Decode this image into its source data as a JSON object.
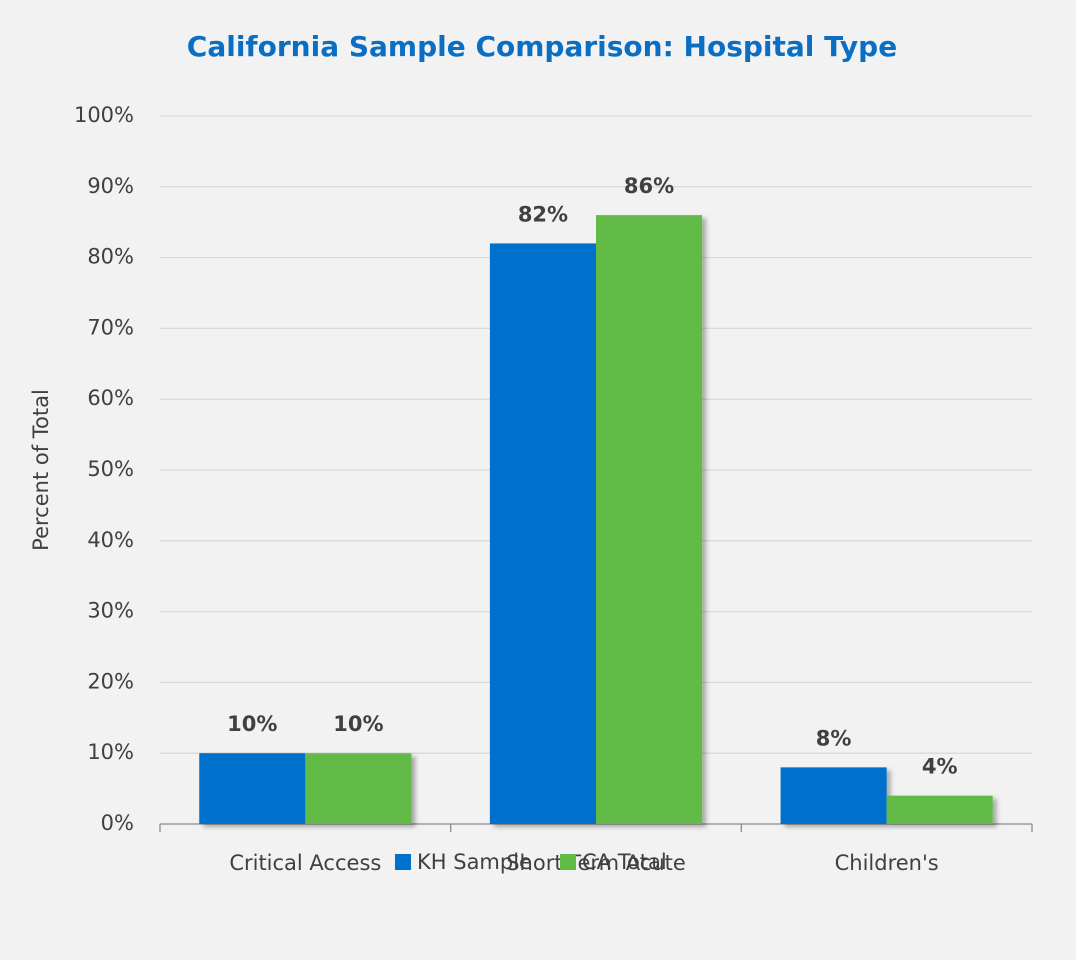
{
  "chart_data": {
    "type": "bar",
    "title": "California Sample Comparison: Hospital Type",
    "y_label": "Percent of Total",
    "categories": [
      "Critical Access",
      "Short-Term Acute",
      "Children's"
    ],
    "series": [
      {
        "name": "KH Sample",
        "color": "#0070cd",
        "values": [
          10,
          82,
          8
        ],
        "value_labels": [
          "10%",
          "82%",
          "8%"
        ]
      },
      {
        "name": "CA Total",
        "color": "#62bb46",
        "values": [
          10,
          86,
          4
        ],
        "value_labels": [
          "10%",
          "86%",
          "4%"
        ]
      }
    ],
    "ylim": [
      0,
      100
    ],
    "yticks": [
      {
        "value": 0,
        "label": "0%"
      },
      {
        "value": 10,
        "label": "10%"
      },
      {
        "value": 20,
        "label": "20%"
      },
      {
        "value": 30,
        "label": "30%"
      },
      {
        "value": 40,
        "label": "40%"
      },
      {
        "value": 50,
        "label": "50%"
      },
      {
        "value": 60,
        "label": "60%"
      },
      {
        "value": 70,
        "label": "70%"
      },
      {
        "value": 80,
        "label": "80%"
      },
      {
        "value": 90,
        "label": "90%"
      },
      {
        "value": 100,
        "label": "100%"
      }
    ],
    "grid": true,
    "legend": "bottom"
  }
}
